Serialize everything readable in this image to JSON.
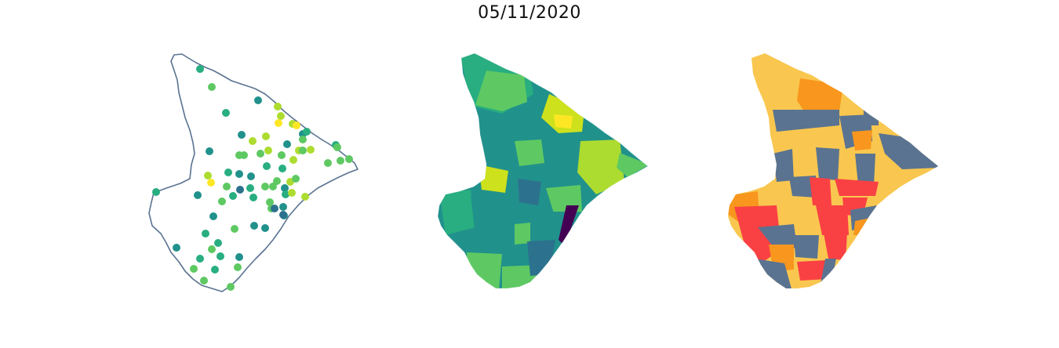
{
  "title": "05/11/2020",
  "colors": {
    "outline": "#5a7391",
    "viridis": [
      "#440154",
      "#3b528b",
      "#2c728e",
      "#21918c",
      "#28ae80",
      "#5ec962",
      "#addc30",
      "#fde725"
    ],
    "categories": {
      "low": "#5a7391",
      "moderate": "#f9c74f",
      "high": "#f8961e",
      "very_high": "#f94144"
    }
  },
  "panels": [
    {
      "name": "point-map",
      "kind": "points"
    },
    {
      "name": "choropleth-map",
      "kind": "continuous"
    },
    {
      "name": "category-map",
      "kind": "categorical"
    }
  ]
}
